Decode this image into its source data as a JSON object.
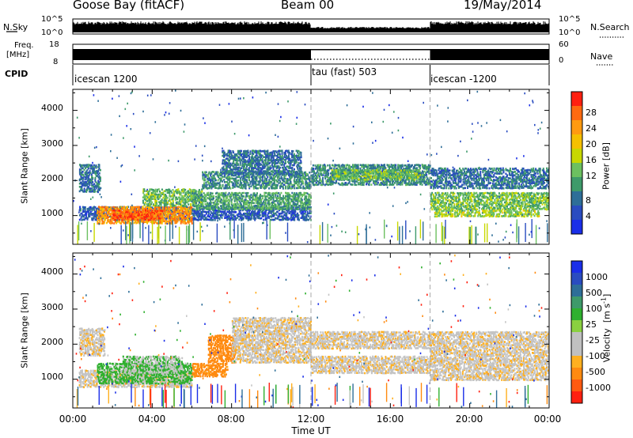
{
  "header": {
    "station": "Goose Bay (fitACF)",
    "beam": "Beam 00",
    "date": "19/May/2014"
  },
  "strip_labels": {
    "nsky": "N.Sky",
    "nsky_ticks": [
      "10^5",
      "10^0"
    ],
    "nsearch": "N.Search",
    "nsearch_ticks": [
      "10^5",
      "10^0"
    ],
    "freq_line1": "Freq.",
    "freq_line2": "[MHz]",
    "freq_ticks": [
      "18",
      "8"
    ],
    "nave": "Nave",
    "nave_ticks": [
      "60",
      "0"
    ],
    "cpid": "CPID"
  },
  "cpid_segments": [
    {
      "label": "icescan 1200",
      "start_hour": 0.0,
      "end_hour": 12.0
    },
    {
      "label": "tau (fast) 503",
      "start_hour": 12.0,
      "end_hour": 18.0
    },
    {
      "label": "icescan -1200",
      "start_hour": 18.0,
      "end_hour": 24.0
    }
  ],
  "axes": {
    "ylabel": "Slant Range [km]",
    "yticks": [
      "1000",
      "2000",
      "3000",
      "4000"
    ],
    "xlabel": "Time UT",
    "xticks": [
      "00:00",
      "04:00",
      "08:00",
      "12:00",
      "16:00",
      "20:00",
      "00:00"
    ]
  },
  "power_scale": {
    "label": "Power [dB]",
    "ticks": [
      "28",
      "24",
      "20",
      "16",
      "12",
      "8",
      "4"
    ],
    "colors": [
      "#ff2010",
      "#ff6a10",
      "#ff9a10",
      "#f5c000",
      "#c8d800",
      "#6cc060",
      "#3e9a6a",
      "#2e6e98",
      "#2a4cc0",
      "#1a2ee8"
    ]
  },
  "velocity_scale": {
    "label": "Velocity",
    "unit": "[m s",
    "unit_sup": "-1",
    "unit_close": "]",
    "ticks": [
      "1000",
      "500",
      "100",
      "25",
      "-25",
      "-100",
      "-500",
      "-1000"
    ],
    "colors": [
      "#1a2ee8",
      "#2a4cc0",
      "#2e6e98",
      "#3e9a6a",
      "#2fb02f",
      "#8ad040",
      "#c0c0c0",
      "#c0c0c0",
      "#ffb020",
      "#ff8a10",
      "#ff5a10",
      "#ff2010"
    ]
  },
  "chart_data": [
    {
      "type": "heatmap",
      "title": "Power",
      "xlabel": "Time UT",
      "ylabel": "Slant Range [km]",
      "x_range_hours": [
        0,
        24
      ],
      "ylim_km": [
        180,
        4600
      ],
      "colorbar": {
        "label": "Power [dB]",
        "min": 0,
        "max": 32
      },
      "regions": [
        {
          "t0": 0.3,
          "t1": 1.4,
          "r0": 1700,
          "r1": 2500,
          "value": 8
        },
        {
          "t0": 0.3,
          "t1": 12.0,
          "r0": 900,
          "r1": 1300,
          "value": 6
        },
        {
          "t0": 1.2,
          "t1": 6.0,
          "r0": 800,
          "r1": 1300,
          "value": 24
        },
        {
          "t0": 2.0,
          "t1": 4.5,
          "r0": 900,
          "r1": 1200,
          "value": 28
        },
        {
          "t0": 3.5,
          "t1": 6.5,
          "r0": 1300,
          "r1": 1800,
          "value": 14
        },
        {
          "t0": 6.0,
          "t1": 12.0,
          "r0": 1200,
          "r1": 1700,
          "value": 12
        },
        {
          "t0": 6.5,
          "t1": 12.0,
          "r0": 1800,
          "r1": 2300,
          "value": 10
        },
        {
          "t0": 7.5,
          "t1": 11.5,
          "r0": 2200,
          "r1": 2900,
          "value": 8
        },
        {
          "t0": 12.0,
          "t1": 18.0,
          "r0": 1900,
          "r1": 2500,
          "value": 10
        },
        {
          "t0": 13.0,
          "t1": 17.5,
          "r0": 2050,
          "r1": 2350,
          "value": 14
        },
        {
          "t0": 18.0,
          "t1": 24.0,
          "r0": 1200,
          "r1": 1700,
          "value": 14
        },
        {
          "t0": 18.0,
          "t1": 24.0,
          "r0": 1800,
          "r1": 2400,
          "value": 8
        },
        {
          "t0": 18.2,
          "t1": 23.5,
          "r0": 1000,
          "r1": 1200,
          "value": 16
        }
      ]
    },
    {
      "type": "heatmap",
      "title": "Velocity",
      "xlabel": "Time UT",
      "ylabel": "Slant Range [km]",
      "x_range_hours": [
        0,
        24
      ],
      "ylim_km": [
        180,
        4600
      ],
      "colorbar": {
        "label": "Velocity [m s-1]",
        "min": -1000,
        "max": 1000
      },
      "regions": [
        {
          "t0": 0.3,
          "t1": 1.6,
          "r0": 1700,
          "r1": 2500,
          "value": 0
        },
        {
          "t0": 0.3,
          "t1": 6.0,
          "r0": 800,
          "r1": 1300,
          "value": 0
        },
        {
          "t0": 1.2,
          "t1": 6.0,
          "r0": 900,
          "r1": 1500,
          "value": 100
        },
        {
          "t0": 2.5,
          "t1": 5.5,
          "r0": 1200,
          "r1": 1700,
          "value": 50
        },
        {
          "t0": 6.0,
          "t1": 7.8,
          "r0": 1100,
          "r1": 1500,
          "value": -200
        },
        {
          "t0": 6.8,
          "t1": 8.2,
          "r0": 1500,
          "r1": 2300,
          "value": -300
        },
        {
          "t0": 8.0,
          "t1": 12.0,
          "r0": 1500,
          "r1": 2800,
          "value": 0
        },
        {
          "t0": 12.0,
          "t1": 18.0,
          "r0": 1900,
          "r1": 2400,
          "value": 0
        },
        {
          "t0": 12.0,
          "t1": 18.0,
          "r0": 1200,
          "r1": 1700,
          "value": 0
        },
        {
          "t0": 18.0,
          "t1": 24.0,
          "r0": 1000,
          "r1": 2400,
          "value": 0
        }
      ]
    }
  ]
}
